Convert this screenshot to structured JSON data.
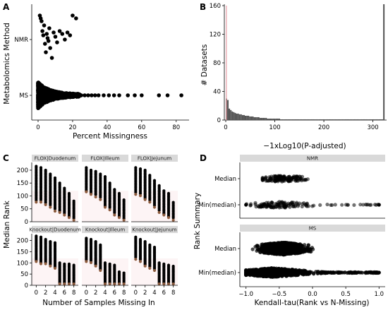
{
  "panels": {
    "a": "A",
    "b": "B",
    "c": "C",
    "d": "D"
  },
  "chart_data": [
    {
      "panel": "A",
      "type": "scatter",
      "xlabel": "Percent Missingness",
      "ylabel": "Metabolomics Method",
      "xlim": [
        0,
        85
      ],
      "x_ticks": [
        0,
        20,
        40,
        60,
        80
      ],
      "categories": [
        "MS",
        "NMR"
      ],
      "series": [
        {
          "category": "NMR",
          "x": [
            1.0,
            1.5,
            2.0,
            2.5,
            3.0,
            3.5,
            4.0,
            4.5,
            5.0,
            5.5,
            6.0,
            6.5,
            7.0,
            8.0,
            9.0,
            10.0,
            11.0,
            12.5,
            14.0,
            15.5,
            17.0,
            18.5,
            20.0,
            22.0
          ]
        },
        {
          "category": "MS",
          "x": [
            25,
            27,
            29,
            31,
            33,
            35,
            38,
            41,
            44,
            47,
            52,
            56,
            60,
            70,
            75,
            83
          ]
        }
      ]
    },
    {
      "panel": "B",
      "type": "bar",
      "xlabel": "−1xLog10(P-adjusted)",
      "ylabel": "# Datasets",
      "xlim": [
        0,
        325
      ],
      "ylim": [
        0,
        160
      ],
      "x_ticks": [
        0,
        100,
        200,
        300
      ],
      "y_ticks": [
        0,
        40,
        80,
        120,
        160
      ],
      "bin_width": 3,
      "values": [
        30,
        28,
        16,
        14,
        12,
        11,
        10,
        9,
        9,
        8,
        8,
        7,
        7,
        6,
        6,
        6,
        5,
        5,
        5,
        4,
        4,
        4,
        4,
        3,
        3,
        3,
        3,
        3,
        2,
        2,
        2,
        2,
        2,
        2,
        2,
        2,
        2,
        1,
        1,
        1,
        1,
        1,
        1,
        1,
        1,
        1,
        1,
        1,
        1,
        1,
        1,
        1,
        1,
        1,
        1,
        1,
        1,
        1,
        1,
        1,
        1,
        1,
        1,
        1,
        1,
        1,
        1,
        1,
        1,
        1,
        1,
        1,
        1,
        1,
        1,
        1,
        1,
        1,
        1,
        1,
        1,
        1,
        1,
        1,
        1,
        1,
        1,
        1,
        1,
        1,
        1,
        1,
        1,
        1,
        1,
        1,
        1,
        1,
        1,
        1,
        1,
        1,
        1,
        1,
        1,
        1,
        1,
        162
      ],
      "reference_line_x": 1.3,
      "reference_color": "#e8a0a8"
    },
    {
      "panel": "C",
      "type": "scatter",
      "xlabel": "Number of Samples Missing In",
      "ylabel": "Median Rank",
      "xlim": [
        -0.5,
        8.5
      ],
      "ylim": [
        0,
        230
      ],
      "x_ticks": [
        0,
        2,
        4,
        6,
        8
      ],
      "y_ticks": [
        0,
        50,
        100,
        150,
        200
      ],
      "facets": [
        {
          "label": "FLOX|Duodenum",
          "columns": [
            [
              80,
              215
            ],
            [
              80,
              210
            ],
            [
              70,
              200
            ],
            [
              60,
              185
            ],
            [
              45,
              170
            ],
            [
              40,
              150
            ],
            [
              30,
              130
            ],
            [
              20,
              110
            ],
            [
              10,
              80
            ]
          ]
        },
        {
          "label": "FLOX|Illeum",
          "columns": [
            [
              120,
              210
            ],
            [
              110,
              200
            ],
            [
              100,
              195
            ],
            [
              90,
              185
            ],
            [
              60,
              175
            ],
            [
              50,
              150
            ],
            [
              30,
              125
            ],
            [
              20,
              110
            ],
            [
              10,
              85
            ]
          ]
        },
        {
          "label": "FLOX|Jejunum",
          "columns": [
            [
              110,
              210
            ],
            [
              105,
              205
            ],
            [
              90,
              200
            ],
            [
              80,
              180
            ],
            [
              60,
              160
            ],
            [
              40,
              140
            ],
            [
              30,
              120
            ],
            [
              20,
              110
            ],
            [
              10,
              75
            ]
          ]
        },
        {
          "label": "Knockout|Duodenum",
          "columns": [
            [
              110,
              220
            ],
            [
              100,
              215
            ],
            [
              100,
              205
            ],
            [
              90,
              195
            ],
            [
              80,
              190
            ],
            [
              10,
              100
            ],
            [
              10,
              95
            ],
            [
              10,
              95
            ],
            [
              10,
              90
            ]
          ]
        },
        {
          "label": "Knockout|Illeum",
          "columns": [
            [
              110,
              210
            ],
            [
              105,
              205
            ],
            [
              90,
              195
            ],
            [
              70,
              180
            ],
            [
              10,
              100
            ],
            [
              10,
              95
            ],
            [
              10,
              90
            ],
            [
              10,
              60
            ],
            [
              10,
              55
            ]
          ]
        },
        {
          "label": "Knockout|Jejunum",
          "columns": [
            [
              120,
              215
            ],
            [
              110,
              205
            ],
            [
              90,
              195
            ],
            [
              80,
              180
            ],
            [
              70,
              170
            ],
            [
              10,
              100
            ],
            [
              10,
              95
            ],
            [
              10,
              90
            ],
            [
              10,
              85
            ]
          ]
        }
      ]
    },
    {
      "panel": "D",
      "type": "scatter",
      "xlabel": "Kendall-tau(Rank vs N-Missing)",
      "ylabel": "Rank Summary",
      "xlim": [
        -1.05,
        1.05
      ],
      "x_ticks": [
        -1.0,
        -0.5,
        0.0,
        0.5,
        1.0
      ],
      "x_tick_labels": [
        "−1.0",
        "−0.5",
        "0.0",
        "0.5",
        "1.0"
      ],
      "categories": [
        "Median",
        "Min(median)"
      ],
      "facets": [
        {
          "label": "NMR",
          "series": [
            {
              "category": "Median",
              "range": [
                -0.75,
                0.0
              ]
            },
            {
              "category": "Min(median)",
              "range": [
                -1.0,
                1.0
              ]
            }
          ]
        },
        {
          "label": "MS",
          "series": [
            {
              "category": "Median",
              "range": [
                -0.9,
                0.3
              ]
            },
            {
              "category": "Min(median)",
              "range": [
                -1.0,
                1.0
              ]
            }
          ]
        }
      ]
    }
  ]
}
